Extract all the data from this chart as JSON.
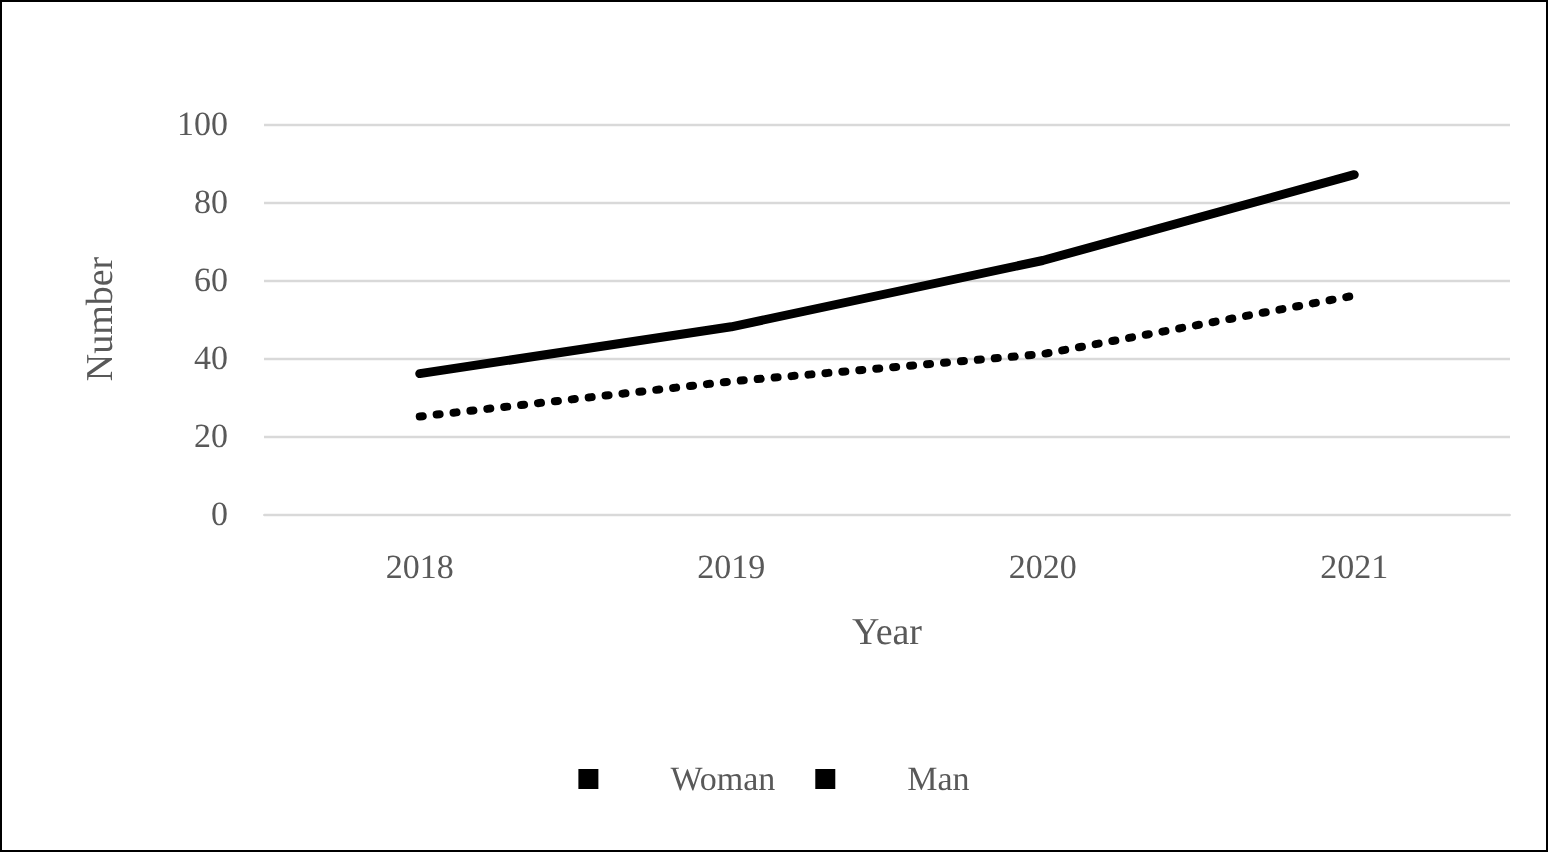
{
  "chart_data": {
    "type": "line",
    "xlabel": "Year",
    "ylabel": "Number",
    "categories": [
      "2018",
      "2019",
      "2020",
      "2021"
    ],
    "series": [
      {
        "name": "Woman",
        "color": "#000000",
        "values": [
          25,
          34,
          41,
          56
        ],
        "line_style": "dotted"
      },
      {
        "name": "Man",
        "color": "#000000",
        "values": [
          36,
          48,
          65,
          87
        ],
        "line_style": "solid"
      }
    ],
    "ylim": [
      0,
      100
    ],
    "yticks": [
      0,
      20,
      40,
      60,
      80,
      100
    ],
    "grid": "y",
    "legend": "bottom",
    "marker": "none"
  }
}
